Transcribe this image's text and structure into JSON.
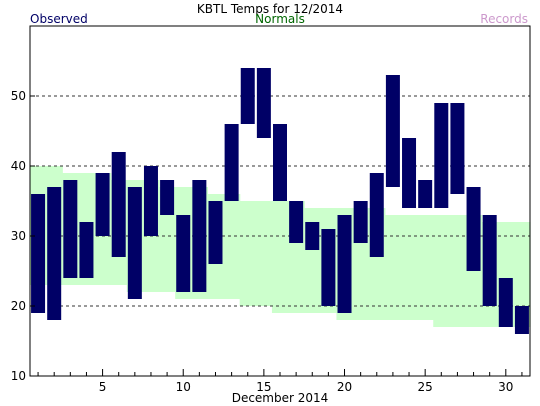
{
  "chart_data": {
    "type": "bar",
    "title": "KBTL Temps for 12/2014",
    "xlabel": "December 2014",
    "ylabel": "",
    "legend": {
      "observed": "Observed",
      "normals": "Normals",
      "records": "Records"
    },
    "colors": {
      "observed": "#000066",
      "normals": "#006600",
      "normals_fill": "#ccffcc",
      "records": "#cc99cc"
    },
    "xlim": [
      0.5,
      31.5
    ],
    "ylim": [
      10,
      60
    ],
    "grid": "dashed-horizontal",
    "x_ticks": [
      5,
      10,
      15,
      20,
      25,
      30
    ],
    "y_ticks": [
      10,
      20,
      30,
      40,
      50
    ],
    "days": [
      1,
      2,
      3,
      4,
      5,
      6,
      7,
      8,
      9,
      10,
      11,
      12,
      13,
      14,
      15,
      16,
      17,
      18,
      19,
      20,
      21,
      22,
      23,
      24,
      25,
      26,
      27,
      28,
      29,
      30,
      31
    ],
    "series": [
      {
        "name": "Observed",
        "high": [
          36,
          37,
          38,
          32,
          39,
          42,
          37,
          40,
          38,
          33,
          38,
          35,
          46,
          54,
          54,
          46,
          35,
          32,
          31,
          33,
          35,
          39,
          53,
          44,
          38,
          49,
          49,
          37,
          33,
          24,
          20
        ],
        "low": [
          19,
          18,
          24,
          24,
          30,
          27,
          21,
          30,
          33,
          22,
          22,
          26,
          35,
          46,
          44,
          35,
          29,
          28,
          20,
          19,
          29,
          27,
          37,
          34,
          34,
          34,
          36,
          25,
          20,
          17,
          16
        ]
      },
      {
        "name": "Normals",
        "high": [
          40,
          40,
          39,
          39,
          39,
          38,
          38,
          38,
          37,
          37,
          37,
          36,
          36,
          35,
          35,
          35,
          35,
          34,
          34,
          34,
          34,
          34,
          33,
          33,
          33,
          33,
          33,
          33,
          32,
          32,
          32
        ],
        "low": [
          23,
          23,
          23,
          23,
          23,
          23,
          22,
          22,
          22,
          21,
          21,
          21,
          21,
          20,
          20,
          19,
          19,
          19,
          19,
          18,
          18,
          18,
          18,
          18,
          18,
          17,
          17,
          17,
          17,
          17,
          17
        ]
      }
    ]
  }
}
